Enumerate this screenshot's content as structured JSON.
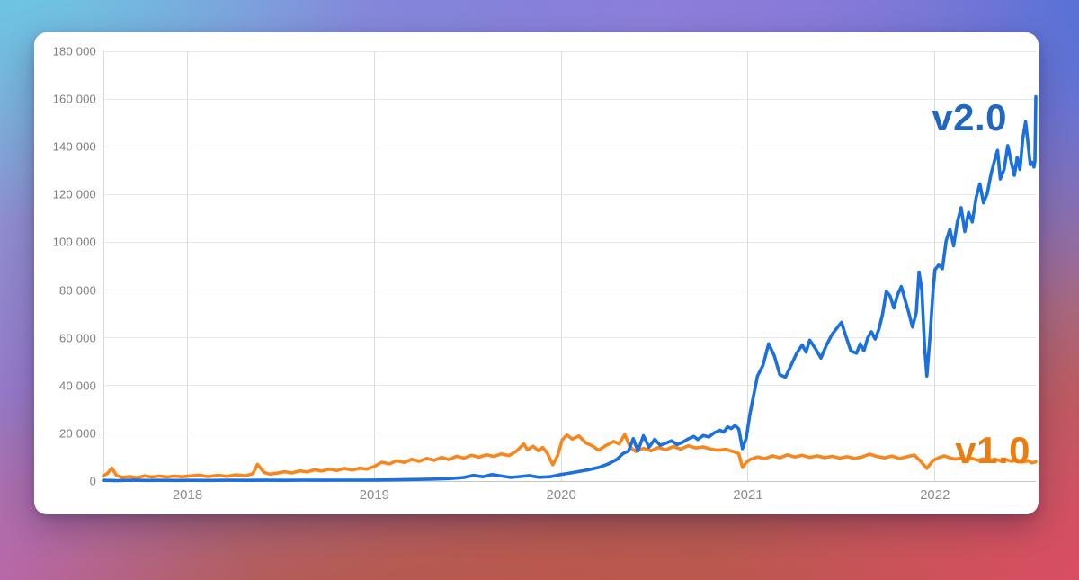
{
  "card": {
    "kind": "trend-chart-card"
  },
  "colors": {
    "v2_line": "#1b70dd",
    "v1_line": "#f7861d",
    "v2_label": "#2066c2",
    "v1_label": "#e87d12",
    "grid": "#e8e8e8",
    "axis_zero": "#c6c6c6",
    "vgrid": "#dcdcdc",
    "tick_text": "#7d7d7d"
  },
  "chart_data": {
    "type": "line",
    "title": "",
    "xlabel": "",
    "ylabel": "",
    "legend_position": "inline-end-of-line",
    "grid": true,
    "x_axis": {
      "range": [
        2017.55,
        2022.54
      ],
      "ticks": [
        {
          "value": 2018,
          "label": "2018"
        },
        {
          "value": 2019,
          "label": "2019"
        },
        {
          "value": 2020,
          "label": "2020"
        },
        {
          "value": 2021,
          "label": "2021"
        },
        {
          "value": 2022,
          "label": "2022"
        }
      ]
    },
    "y_axis": {
      "range": [
        0,
        180000
      ],
      "ticks": [
        {
          "value": 0,
          "label": "0"
        },
        {
          "value": 20000,
          "label": "20 000"
        },
        {
          "value": 40000,
          "label": "40 000"
        },
        {
          "value": 60000,
          "label": "60 000"
        },
        {
          "value": 80000,
          "label": "80 000"
        },
        {
          "value": 100000,
          "label": "100 000"
        },
        {
          "value": 120000,
          "label": "120 000"
        },
        {
          "value": 140000,
          "label": "140 000"
        },
        {
          "value": 160000,
          "label": "160 000"
        },
        {
          "value": 180000,
          "label": "180 000"
        }
      ]
    },
    "series": [
      {
        "name": "v2.0",
        "color_key": "v2_line",
        "label_color_key": "v2_label",
        "points": [
          [
            2017.55,
            300
          ],
          [
            2017.62,
            200
          ],
          [
            2017.7,
            350
          ],
          [
            2017.78,
            250
          ],
          [
            2017.86,
            320
          ],
          [
            2017.94,
            260
          ],
          [
            2018.02,
            300
          ],
          [
            2018.12,
            270
          ],
          [
            2018.22,
            330
          ],
          [
            2018.32,
            290
          ],
          [
            2018.42,
            350
          ],
          [
            2018.52,
            310
          ],
          [
            2018.62,
            370
          ],
          [
            2018.72,
            330
          ],
          [
            2018.82,
            390
          ],
          [
            2018.92,
            360
          ],
          [
            2019.0,
            420
          ],
          [
            2019.1,
            500
          ],
          [
            2019.2,
            640
          ],
          [
            2019.3,
            800
          ],
          [
            2019.4,
            1000
          ],
          [
            2019.48,
            1500
          ],
          [
            2019.53,
            2400
          ],
          [
            2019.58,
            1800
          ],
          [
            2019.63,
            2700
          ],
          [
            2019.68,
            2100
          ],
          [
            2019.73,
            1500
          ],
          [
            2019.78,
            1900
          ],
          [
            2019.83,
            2300
          ],
          [
            2019.88,
            1600
          ],
          [
            2019.94,
            1800
          ],
          [
            2020.0,
            2800
          ],
          [
            2020.05,
            3400
          ],
          [
            2020.1,
            4100
          ],
          [
            2020.15,
            4800
          ],
          [
            2020.2,
            5700
          ],
          [
            2020.25,
            7100
          ],
          [
            2020.3,
            9200
          ],
          [
            2020.33,
            11500
          ],
          [
            2020.36,
            12600
          ],
          [
            2020.385,
            17800
          ],
          [
            2020.41,
            12600
          ],
          [
            2020.44,
            19000
          ],
          [
            2020.47,
            14200
          ],
          [
            2020.5,
            17500
          ],
          [
            2020.53,
            15000
          ],
          [
            2020.56,
            15900
          ],
          [
            2020.59,
            16900
          ],
          [
            2020.62,
            15300
          ],
          [
            2020.65,
            16300
          ],
          [
            2020.68,
            17700
          ],
          [
            2020.71,
            18700
          ],
          [
            2020.73,
            17400
          ],
          [
            2020.76,
            19100
          ],
          [
            2020.79,
            18500
          ],
          [
            2020.82,
            20300
          ],
          [
            2020.85,
            21300
          ],
          [
            2020.87,
            20500
          ],
          [
            2020.89,
            22700
          ],
          [
            2020.91,
            22000
          ],
          [
            2020.93,
            23300
          ],
          [
            2020.95,
            21800
          ],
          [
            2020.97,
            13600
          ],
          [
            2020.99,
            18000
          ],
          [
            2021.01,
            28000
          ],
          [
            2021.03,
            36000
          ],
          [
            2021.05,
            44000
          ],
          [
            2021.08,
            48500
          ],
          [
            2021.11,
            57500
          ],
          [
            2021.14,
            52500
          ],
          [
            2021.17,
            44500
          ],
          [
            2021.2,
            43500
          ],
          [
            2021.23,
            48500
          ],
          [
            2021.26,
            53500
          ],
          [
            2021.29,
            57000
          ],
          [
            2021.31,
            54000
          ],
          [
            2021.33,
            59000
          ],
          [
            2021.36,
            55500
          ],
          [
            2021.39,
            51500
          ],
          [
            2021.42,
            57000
          ],
          [
            2021.45,
            61500
          ],
          [
            2021.48,
            64500
          ],
          [
            2021.5,
            66500
          ],
          [
            2021.52,
            61500
          ],
          [
            2021.55,
            54500
          ],
          [
            2021.58,
            53500
          ],
          [
            2021.6,
            57500
          ],
          [
            2021.62,
            54500
          ],
          [
            2021.64,
            60000
          ],
          [
            2021.66,
            62500
          ],
          [
            2021.68,
            59500
          ],
          [
            2021.7,
            63500
          ],
          [
            2021.72,
            70000
          ],
          [
            2021.74,
            79500
          ],
          [
            2021.76,
            77500
          ],
          [
            2021.78,
            72500
          ],
          [
            2021.8,
            78000
          ],
          [
            2021.82,
            81500
          ],
          [
            2021.84,
            76000
          ],
          [
            2021.86,
            70500
          ],
          [
            2021.88,
            64500
          ],
          [
            2021.9,
            70500
          ],
          [
            2021.915,
            87500
          ],
          [
            2021.93,
            80000
          ],
          [
            2021.945,
            56000
          ],
          [
            2021.957,
            44000
          ],
          [
            2021.975,
            62000
          ],
          [
            2021.99,
            80000
          ],
          [
            2022.0,
            88500
          ],
          [
            2022.02,
            90500
          ],
          [
            2022.04,
            89000
          ],
          [
            2022.06,
            100500
          ],
          [
            2022.08,
            105500
          ],
          [
            2022.1,
            98500
          ],
          [
            2022.12,
            108500
          ],
          [
            2022.14,
            114500
          ],
          [
            2022.16,
            104500
          ],
          [
            2022.18,
            112500
          ],
          [
            2022.2,
            108500
          ],
          [
            2022.22,
            118500
          ],
          [
            2022.24,
            124500
          ],
          [
            2022.26,
            116500
          ],
          [
            2022.28,
            120500
          ],
          [
            2022.3,
            128500
          ],
          [
            2022.32,
            134500
          ],
          [
            2022.335,
            138500
          ],
          [
            2022.35,
            126500
          ],
          [
            2022.37,
            130500
          ],
          [
            2022.39,
            140500
          ],
          [
            2022.41,
            133000
          ],
          [
            2022.425,
            128000
          ],
          [
            2022.44,
            135500
          ],
          [
            2022.455,
            130500
          ],
          [
            2022.47,
            143500
          ],
          [
            2022.485,
            150500
          ],
          [
            2022.5,
            140000
          ],
          [
            2022.51,
            132500
          ],
          [
            2022.52,
            133500
          ],
          [
            2022.53,
            131500
          ],
          [
            2022.535,
            134000
          ],
          [
            2022.54,
            161000
          ]
        ]
      },
      {
        "name": "v1.0",
        "color_key": "v1_line",
        "label_color_key": "v1_label",
        "points": [
          [
            2017.55,
            2300
          ],
          [
            2017.57,
            3100
          ],
          [
            2017.595,
            5400
          ],
          [
            2017.62,
            2400
          ],
          [
            2017.65,
            1500
          ],
          [
            2017.69,
            1900
          ],
          [
            2017.73,
            1400
          ],
          [
            2017.77,
            2200
          ],
          [
            2017.81,
            1700
          ],
          [
            2017.85,
            2100
          ],
          [
            2017.89,
            1700
          ],
          [
            2017.93,
            2100
          ],
          [
            2017.97,
            1800
          ],
          [
            2018.01,
            2100
          ],
          [
            2018.06,
            2500
          ],
          [
            2018.11,
            1900
          ],
          [
            2018.16,
            2400
          ],
          [
            2018.21,
            2000
          ],
          [
            2018.26,
            2600
          ],
          [
            2018.31,
            2200
          ],
          [
            2018.35,
            3100
          ],
          [
            2018.375,
            7000
          ],
          [
            2018.41,
            3600
          ],
          [
            2018.44,
            2900
          ],
          [
            2018.48,
            3300
          ],
          [
            2018.52,
            3900
          ],
          [
            2018.56,
            3400
          ],
          [
            2018.6,
            4300
          ],
          [
            2018.64,
            3800
          ],
          [
            2018.68,
            4700
          ],
          [
            2018.72,
            4200
          ],
          [
            2018.76,
            5000
          ],
          [
            2018.8,
            4400
          ],
          [
            2018.84,
            5300
          ],
          [
            2018.88,
            4600
          ],
          [
            2018.92,
            5400
          ],
          [
            2018.96,
            5000
          ],
          [
            2019.0,
            6100
          ],
          [
            2019.04,
            7900
          ],
          [
            2019.08,
            7200
          ],
          [
            2019.12,
            8500
          ],
          [
            2019.16,
            7800
          ],
          [
            2019.2,
            9100
          ],
          [
            2019.24,
            8300
          ],
          [
            2019.28,
            9500
          ],
          [
            2019.32,
            8700
          ],
          [
            2019.36,
            9900
          ],
          [
            2019.4,
            9000
          ],
          [
            2019.44,
            10400
          ],
          [
            2019.48,
            9600
          ],
          [
            2019.52,
            10800
          ],
          [
            2019.56,
            10000
          ],
          [
            2019.6,
            11000
          ],
          [
            2019.64,
            10300
          ],
          [
            2019.68,
            11400
          ],
          [
            2019.72,
            10700
          ],
          [
            2019.76,
            12500
          ],
          [
            2019.8,
            15600
          ],
          [
            2019.82,
            13100
          ],
          [
            2019.85,
            14600
          ],
          [
            2019.88,
            12600
          ],
          [
            2019.9,
            14100
          ],
          [
            2019.925,
            11800
          ],
          [
            2019.955,
            6800
          ],
          [
            2019.98,
            10500
          ],
          [
            2020.005,
            17200
          ],
          [
            2020.03,
            19300
          ],
          [
            2020.06,
            17600
          ],
          [
            2020.095,
            18900
          ],
          [
            2020.13,
            16100
          ],
          [
            2020.17,
            14600
          ],
          [
            2020.2,
            12900
          ],
          [
            2020.24,
            14900
          ],
          [
            2020.28,
            16600
          ],
          [
            2020.31,
            15600
          ],
          [
            2020.34,
            19500
          ],
          [
            2020.37,
            14100
          ],
          [
            2020.4,
            12400
          ],
          [
            2020.44,
            13700
          ],
          [
            2020.48,
            12700
          ],
          [
            2020.52,
            14100
          ],
          [
            2020.56,
            13100
          ],
          [
            2020.6,
            14500
          ],
          [
            2020.64,
            13400
          ],
          [
            2020.68,
            14800
          ],
          [
            2020.72,
            13900
          ],
          [
            2020.76,
            14300
          ],
          [
            2020.8,
            13400
          ],
          [
            2020.84,
            12900
          ],
          [
            2020.88,
            13300
          ],
          [
            2020.92,
            12400
          ],
          [
            2020.95,
            11500
          ],
          [
            2020.97,
            5700
          ],
          [
            2020.99,
            7800
          ],
          [
            2021.01,
            9000
          ],
          [
            2021.05,
            10100
          ],
          [
            2021.09,
            9400
          ],
          [
            2021.13,
            10600
          ],
          [
            2021.17,
            9700
          ],
          [
            2021.21,
            11000
          ],
          [
            2021.25,
            10100
          ],
          [
            2021.29,
            10800
          ],
          [
            2021.33,
            9900
          ],
          [
            2021.37,
            10600
          ],
          [
            2021.41,
            9800
          ],
          [
            2021.45,
            10400
          ],
          [
            2021.49,
            9600
          ],
          [
            2021.53,
            10200
          ],
          [
            2021.57,
            9500
          ],
          [
            2021.61,
            10100
          ],
          [
            2021.65,
            11300
          ],
          [
            2021.69,
            10300
          ],
          [
            2021.73,
            9700
          ],
          [
            2021.77,
            10500
          ],
          [
            2021.81,
            9400
          ],
          [
            2021.85,
            10200
          ],
          [
            2021.89,
            10900
          ],
          [
            2021.92,
            8600
          ],
          [
            2021.957,
            5300
          ],
          [
            2021.99,
            8600
          ],
          [
            2022.02,
            9800
          ],
          [
            2022.05,
            10600
          ],
          [
            2022.08,
            9700
          ],
          [
            2022.11,
            9200
          ],
          [
            2022.14,
            9700
          ],
          [
            2022.17,
            8900
          ],
          [
            2022.2,
            9500
          ],
          [
            2022.23,
            8700
          ],
          [
            2022.26,
            9300
          ],
          [
            2022.29,
            8600
          ],
          [
            2022.32,
            9200
          ],
          [
            2022.35,
            8500
          ],
          [
            2022.38,
            9000
          ],
          [
            2022.41,
            8300
          ],
          [
            2022.44,
            8800
          ],
          [
            2022.47,
            8000
          ],
          [
            2022.5,
            8500
          ],
          [
            2022.52,
            7600
          ],
          [
            2022.54,
            8100
          ]
        ]
      }
    ]
  }
}
